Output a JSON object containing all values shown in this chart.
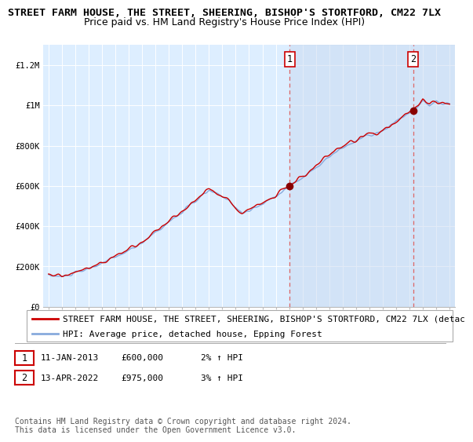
{
  "title_line1": "STREET FARM HOUSE, THE STREET, SHEERING, BISHOP'S STORTFORD, CM22 7LX",
  "title_line2": "Price paid vs. HM Land Registry's House Price Index (HPI)",
  "ylim": [
    0,
    1300000
  ],
  "yticks": [
    0,
    200000,
    400000,
    600000,
    800000,
    1000000,
    1200000
  ],
  "ytick_labels": [
    "£0",
    "£200K",
    "£400K",
    "£600K",
    "£800K",
    "£1M",
    "£1.2M"
  ],
  "sale1_year": 2013.03,
  "sale1_price": 600000,
  "sale2_year": 2022.28,
  "sale2_price": 975000,
  "line_color_price": "#cc0000",
  "line_color_hpi": "#88aadd",
  "sale_dot_color": "#880000",
  "vline_color": "#dd6666",
  "plot_bg_color": "#ddeeff",
  "legend_label_price": "STREET FARM HOUSE, THE STREET, SHEERING, BISHOP'S STORTFORD, CM22 7LX (detac",
  "legend_label_hpi": "HPI: Average price, detached house, Epping Forest",
  "annotation1_label": "1",
  "annotation1_date": "11-JAN-2013",
  "annotation1_price": "£600,000",
  "annotation1_hpi": "2% ↑ HPI",
  "annotation2_label": "2",
  "annotation2_date": "13-APR-2022",
  "annotation2_price": "£975,000",
  "annotation2_hpi": "3% ↑ HPI",
  "footer_text": "Contains HM Land Registry data © Crown copyright and database right 2024.\nThis data is licensed under the Open Government Licence v3.0.",
  "title_fontsize": 9.5,
  "subtitle_fontsize": 9,
  "tick_fontsize": 7.5,
  "legend_fontsize": 8,
  "annotation_fontsize": 8,
  "footer_fontsize": 7
}
